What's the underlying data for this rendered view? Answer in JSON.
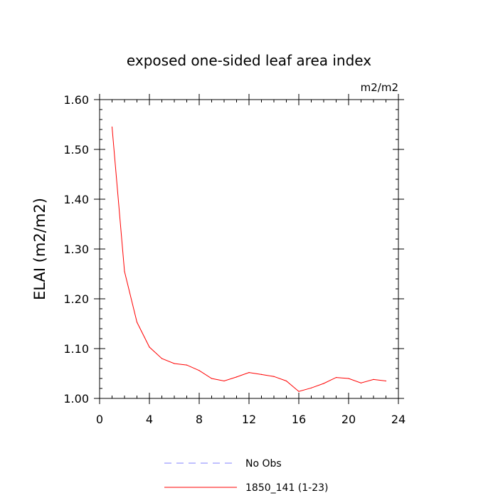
{
  "chart_data": {
    "type": "line",
    "title": "exposed one-sided leaf area index",
    "units_label": "m2/m2",
    "ylabel": "ELAI  (m2/m2)",
    "xlabel": "",
    "xlim": [
      0,
      24
    ],
    "ylim": [
      1.0,
      1.6
    ],
    "x_ticks": [
      0,
      4,
      8,
      12,
      16,
      20,
      24
    ],
    "x_tick_labels": [
      "0",
      "4",
      "8",
      "12",
      "16",
      "20",
      "24"
    ],
    "y_ticks": [
      1.0,
      1.1,
      1.2,
      1.3,
      1.4,
      1.5,
      1.6
    ],
    "y_tick_labels": [
      "1.00",
      "1.10",
      "1.20",
      "1.30",
      "1.40",
      "1.50",
      "1.60"
    ],
    "grid": false,
    "legend_position": "bottom",
    "series": [
      {
        "name": "1850_141 (1-23)",
        "color": "#ff0000",
        "style": "solid",
        "x": [
          1,
          2,
          3,
          4,
          5,
          6,
          7,
          8,
          9,
          10,
          11,
          12,
          13,
          14,
          15,
          16,
          17,
          18,
          19,
          20,
          21,
          22,
          23
        ],
        "values": [
          1.545,
          1.255,
          1.153,
          1.103,
          1.08,
          1.07,
          1.067,
          1.056,
          1.04,
          1.035,
          1.043,
          1.052,
          1.048,
          1.044,
          1.035,
          1.014,
          1.021,
          1.03,
          1.042,
          1.04,
          1.031,
          1.038,
          1.035
        ]
      }
    ],
    "legend": [
      {
        "label": "No Obs",
        "color": "#8080ff",
        "style": "dashed"
      },
      {
        "label": "1850_141 (1-23)",
        "color": "#ff0000",
        "style": "solid"
      }
    ]
  }
}
